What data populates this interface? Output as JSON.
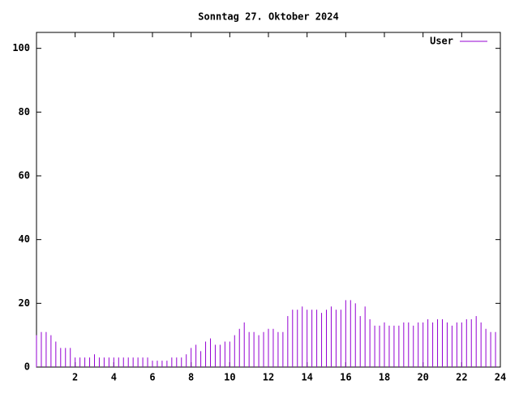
{
  "chart_data": {
    "type": "impulse",
    "title": "Sonntag 27. Oktober 2024",
    "x": [
      0,
      0.25,
      0.5,
      0.75,
      1,
      1.25,
      1.5,
      1.75,
      2,
      2.25,
      2.5,
      2.75,
      3,
      3.25,
      3.5,
      3.75,
      4,
      4.25,
      4.5,
      4.75,
      5,
      5.25,
      5.5,
      5.75,
      6,
      6.25,
      6.5,
      6.75,
      7,
      7.25,
      7.5,
      7.75,
      8,
      8.25,
      8.5,
      8.75,
      9,
      9.25,
      9.5,
      9.75,
      10,
      10.25,
      10.5,
      10.75,
      11,
      11.25,
      11.5,
      11.75,
      12,
      12.25,
      12.5,
      12.75,
      13,
      13.25,
      13.5,
      13.75,
      14,
      14.25,
      14.5,
      14.75,
      15,
      15.25,
      15.5,
      15.75,
      16,
      16.25,
      16.5,
      16.75,
      17,
      17.25,
      17.5,
      17.75,
      18,
      18.25,
      18.5,
      18.75,
      19,
      19.25,
      19.5,
      19.75,
      20,
      20.25,
      20.5,
      20.75,
      21,
      21.25,
      21.5,
      21.75,
      22,
      22.25,
      22.5,
      22.75,
      23,
      23.25,
      23.5,
      23.75
    ],
    "series": [
      {
        "name": "User",
        "color": "#9400d3",
        "values": [
          10,
          11,
          11,
          10,
          8,
          6,
          6,
          6,
          3,
          3,
          3,
          3,
          4,
          3,
          3,
          3,
          3,
          3,
          3,
          3,
          3,
          3,
          3,
          3,
          2,
          2,
          2,
          2,
          3,
          3,
          3,
          4,
          6,
          7,
          5,
          8,
          9,
          7,
          7,
          8,
          8,
          10,
          12,
          14,
          11,
          11,
          10,
          11,
          12,
          12,
          11,
          11,
          16,
          18,
          18,
          19,
          18,
          18,
          18,
          17,
          18,
          19,
          18,
          18,
          21,
          21,
          20,
          16,
          19,
          15,
          13,
          13,
          14,
          13,
          13,
          13,
          14,
          14,
          13,
          14,
          14,
          15,
          14,
          15,
          15,
          14,
          13,
          14,
          14,
          15,
          15,
          16,
          14,
          12,
          11,
          11
        ]
      }
    ],
    "xlim": [
      0,
      24
    ],
    "xticks": [
      2,
      4,
      6,
      8,
      10,
      12,
      14,
      16,
      18,
      20,
      22,
      24
    ],
    "ylim": [
      0,
      105
    ],
    "yticks": [
      0,
      20,
      40,
      60,
      80,
      100
    ],
    "legend": "top-right"
  }
}
